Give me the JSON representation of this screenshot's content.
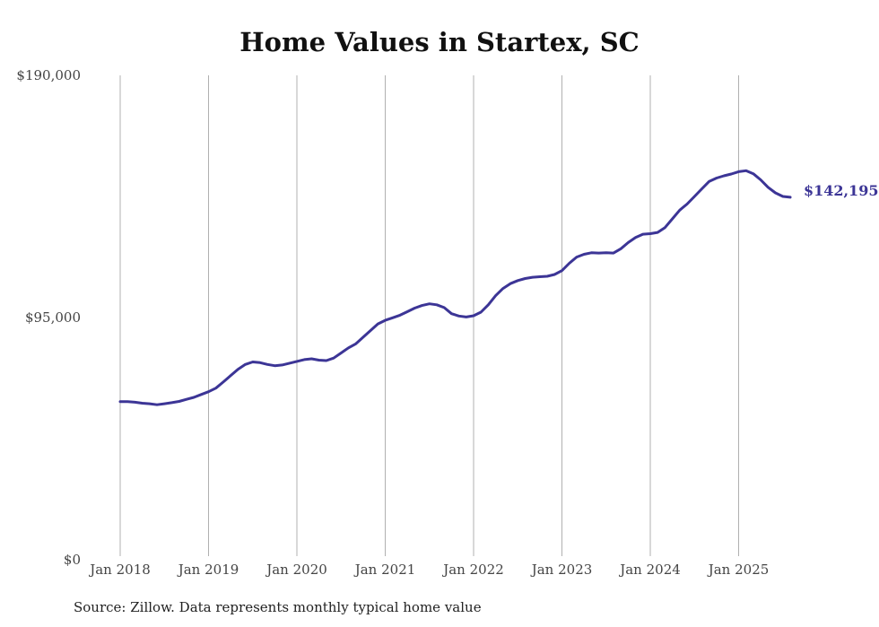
{
  "title": "Home Values in Startex, SC",
  "source": "Source: Zillow. Data represents monthly typical home value",
  "colors": {
    "line": "#3c3596",
    "grid": "#b0b0b0"
  },
  "chart_data": {
    "type": "line",
    "title": "Home Values in Startex, SC",
    "xlabel": "",
    "ylabel": "",
    "ylim": [
      0,
      190000
    ],
    "y_ticks": [
      {
        "value": 0,
        "label": "$0"
      },
      {
        "value": 95000,
        "label": "$95,000"
      },
      {
        "value": 190000,
        "label": "$190,000"
      }
    ],
    "x_ticks": [
      {
        "value": "2018-01",
        "label": "Jan 2018"
      },
      {
        "value": "2019-01",
        "label": "Jan 2019"
      },
      {
        "value": "2020-01",
        "label": "Jan 2020"
      },
      {
        "value": "2021-01",
        "label": "Jan 2021"
      },
      {
        "value": "2022-01",
        "label": "Jan 2022"
      },
      {
        "value": "2023-01",
        "label": "Jan 2023"
      },
      {
        "value": "2024-01",
        "label": "Jan 2024"
      },
      {
        "value": "2025-01",
        "label": "Jan 2025"
      }
    ],
    "grid": {
      "vertical": true,
      "horizontal": false
    },
    "end_label": "$142,195",
    "series": [
      {
        "points": [
          [
            "2018-01",
            62000
          ],
          [
            "2018-02",
            62000
          ],
          [
            "2018-03",
            61800
          ],
          [
            "2018-04",
            61400
          ],
          [
            "2018-05",
            61200
          ],
          [
            "2018-06",
            60800
          ],
          [
            "2018-07",
            61200
          ],
          [
            "2018-08",
            61600
          ],
          [
            "2018-09",
            62100
          ],
          [
            "2018-10",
            62900
          ],
          [
            "2018-11",
            63700
          ],
          [
            "2018-12",
            64800
          ],
          [
            "2019-01",
            65900
          ],
          [
            "2019-02",
            67300
          ],
          [
            "2019-03",
            69700
          ],
          [
            "2019-04",
            72200
          ],
          [
            "2019-05",
            74700
          ],
          [
            "2019-06",
            76600
          ],
          [
            "2019-07",
            77600
          ],
          [
            "2019-08",
            77300
          ],
          [
            "2019-09",
            76600
          ],
          [
            "2019-10",
            76100
          ],
          [
            "2019-11",
            76400
          ],
          [
            "2019-12",
            77100
          ],
          [
            "2020-01",
            77800
          ],
          [
            "2020-02",
            78500
          ],
          [
            "2020-03",
            78800
          ],
          [
            "2020-04",
            78300
          ],
          [
            "2020-05",
            78100
          ],
          [
            "2020-06",
            79100
          ],
          [
            "2020-07",
            81100
          ],
          [
            "2020-08",
            83100
          ],
          [
            "2020-09",
            84700
          ],
          [
            "2020-10",
            87300
          ],
          [
            "2020-11",
            89900
          ],
          [
            "2020-12",
            92500
          ],
          [
            "2021-01",
            93900
          ],
          [
            "2021-02",
            94900
          ],
          [
            "2021-03",
            95900
          ],
          [
            "2021-04",
            97300
          ],
          [
            "2021-05",
            98700
          ],
          [
            "2021-06",
            99700
          ],
          [
            "2021-07",
            100400
          ],
          [
            "2021-08",
            100000
          ],
          [
            "2021-09",
            98900
          ],
          [
            "2021-10",
            96500
          ],
          [
            "2021-11",
            95600
          ],
          [
            "2021-12",
            95200
          ],
          [
            "2022-01",
            95700
          ],
          [
            "2022-02",
            97100
          ],
          [
            "2022-03",
            100000
          ],
          [
            "2022-04",
            103600
          ],
          [
            "2022-05",
            106400
          ],
          [
            "2022-06",
            108300
          ],
          [
            "2022-07",
            109500
          ],
          [
            "2022-08",
            110300
          ],
          [
            "2022-09",
            110800
          ],
          [
            "2022-10",
            111000
          ],
          [
            "2022-11",
            111200
          ],
          [
            "2022-12",
            111900
          ],
          [
            "2023-01",
            113400
          ],
          [
            "2023-02",
            116300
          ],
          [
            "2023-03",
            118700
          ],
          [
            "2023-04",
            119800
          ],
          [
            "2023-05",
            120400
          ],
          [
            "2023-06",
            120300
          ],
          [
            "2023-07",
            120400
          ],
          [
            "2023-08",
            120300
          ],
          [
            "2023-09",
            122000
          ],
          [
            "2023-10",
            124400
          ],
          [
            "2023-11",
            126400
          ],
          [
            "2023-12",
            127700
          ],
          [
            "2024-01",
            127900
          ],
          [
            "2024-02",
            128400
          ],
          [
            "2024-03",
            130300
          ],
          [
            "2024-04",
            133700
          ],
          [
            "2024-05",
            137100
          ],
          [
            "2024-06",
            139500
          ],
          [
            "2024-07",
            142500
          ],
          [
            "2024-08",
            145500
          ],
          [
            "2024-09",
            148400
          ],
          [
            "2024-10",
            149700
          ],
          [
            "2024-11",
            150600
          ],
          [
            "2024-12",
            151300
          ],
          [
            "2025-01",
            152200
          ],
          [
            "2025-02",
            152600
          ],
          [
            "2025-03",
            151400
          ],
          [
            "2025-04",
            149000
          ],
          [
            "2025-05",
            146100
          ],
          [
            "2025-06",
            143900
          ],
          [
            "2025-07",
            142500
          ],
          [
            "2025-08",
            142195
          ]
        ]
      }
    ]
  }
}
